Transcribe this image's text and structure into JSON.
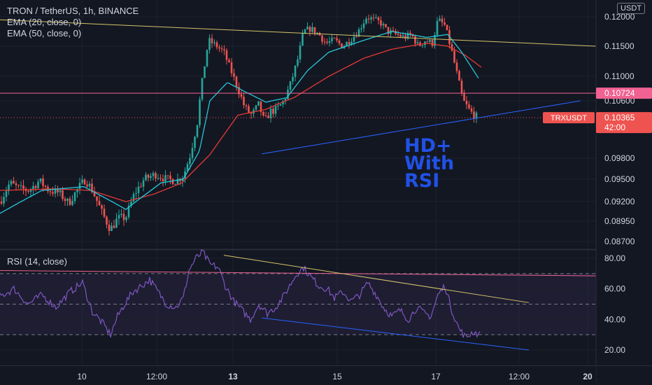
{
  "header": {
    "symbol_line": "TRON / TetherUS, 1h, BINANCE",
    "ema20_label": "EMA (20, close, 0)",
    "ema50_label": "EMA (50, close, 0)",
    "rsi_label": "RSI (14, close)",
    "currency": "USDT"
  },
  "annotation": {
    "line1": "HD+",
    "line2": "With",
    "line3": "RSI"
  },
  "colors": {
    "background": "#131722",
    "up_candle": "#26a69a",
    "down_candle": "#ef5350",
    "ema20": "#26c6da",
    "ema50": "#e53935",
    "rsi": "#7e57c2",
    "horizontal_level": "#f06292",
    "trendline_upper": "#d4c36a",
    "trendline_lower": "#2962ff",
    "annotation": "#2151e6"
  },
  "chart_data": [
    {
      "type": "candlestick",
      "title": "TRON / TetherUS, 1h, BINANCE",
      "x_ticks": [
        "10",
        "12:00",
        "13",
        "15",
        "17",
        "12:00",
        "20"
      ],
      "y_ticks": [
        "0.12000",
        "0.11500",
        "0.11000",
        "0.10600",
        "0.09800",
        "0.09500",
        "0.09200",
        "0.08950",
        "0.08700"
      ],
      "ylim": [
        0.0862,
        0.121
      ],
      "price_anchors": [
        [
          0,
          0.092
        ],
        [
          14,
          0.0945
        ],
        [
          28,
          0.0937
        ],
        [
          42,
          0.0935
        ],
        [
          56,
          0.0948
        ],
        [
          70,
          0.0935
        ],
        [
          84,
          0.0932
        ],
        [
          98,
          0.0918
        ],
        [
          112,
          0.0938
        ],
        [
          122,
          0.095
        ],
        [
          132,
          0.0935
        ],
        [
          146,
          0.0905
        ],
        [
          158,
          0.0885
        ],
        [
          168,
          0.0898
        ],
        [
          180,
          0.09
        ],
        [
          192,
          0.093
        ],
        [
          206,
          0.095
        ],
        [
          222,
          0.0957
        ],
        [
          238,
          0.095
        ],
        [
          252,
          0.0948
        ],
        [
          262,
          0.0955
        ],
        [
          272,
          0.0985
        ],
        [
          282,
          0.103
        ],
        [
          290,
          0.11
        ],
        [
          298,
          0.116
        ],
        [
          310,
          0.115
        ],
        [
          320,
          0.114
        ],
        [
          330,
          0.111
        ],
        [
          340,
          0.108
        ],
        [
          350,
          0.105
        ],
        [
          360,
          0.104
        ],
        [
          370,
          0.1055
        ],
        [
          378,
          0.103
        ],
        [
          386,
          0.1045
        ],
        [
          396,
          0.1048
        ],
        [
          406,
          0.106
        ],
        [
          416,
          0.109
        ],
        [
          426,
          0.113
        ],
        [
          434,
          0.1175
        ],
        [
          444,
          0.118
        ],
        [
          456,
          0.117
        ],
        [
          466,
          0.1155
        ],
        [
          478,
          0.116
        ],
        [
          490,
          0.115
        ],
        [
          500,
          0.116
        ],
        [
          512,
          0.1175
        ],
        [
          524,
          0.12
        ],
        [
          534,
          0.1195
        ],
        [
          544,
          0.119
        ],
        [
          554,
          0.1175
        ],
        [
          566,
          0.117
        ],
        [
          578,
          0.1165
        ],
        [
          588,
          0.117
        ],
        [
          598,
          0.115
        ],
        [
          608,
          0.116
        ],
        [
          618,
          0.1155
        ],
        [
          626,
          0.1195
        ],
        [
          636,
          0.1185
        ],
        [
          646,
          0.114
        ],
        [
          654,
          0.11
        ],
        [
          662,
          0.106
        ],
        [
          672,
          0.1045
        ],
        [
          682,
          0.1037
        ]
      ],
      "ema20_anchors": [
        [
          0,
          0.0905
        ],
        [
          60,
          0.0935
        ],
        [
          120,
          0.094
        ],
        [
          180,
          0.091
        ],
        [
          230,
          0.0945
        ],
        [
          262,
          0.095
        ],
        [
          285,
          0.099
        ],
        [
          300,
          0.106
        ],
        [
          325,
          0.109
        ],
        [
          350,
          0.1075
        ],
        [
          380,
          0.1058
        ],
        [
          410,
          0.1065
        ],
        [
          440,
          0.111
        ],
        [
          470,
          0.114
        ],
        [
          520,
          0.116
        ],
        [
          560,
          0.1175
        ],
        [
          610,
          0.1165
        ],
        [
          640,
          0.117
        ],
        [
          660,
          0.114
        ],
        [
          685,
          0.1095
        ]
      ],
      "ema50_anchors": [
        [
          0,
          0.0935
        ],
        [
          80,
          0.0937
        ],
        [
          130,
          0.0935
        ],
        [
          180,
          0.092
        ],
        [
          220,
          0.093
        ],
        [
          260,
          0.0945
        ],
        [
          300,
          0.0985
        ],
        [
          340,
          0.104
        ],
        [
          380,
          0.1048
        ],
        [
          420,
          0.1065
        ],
        [
          470,
          0.11
        ],
        [
          520,
          0.113
        ],
        [
          560,
          0.1145
        ],
        [
          610,
          0.1155
        ],
        [
          640,
          0.115
        ],
        [
          665,
          0.1135
        ],
        [
          688,
          0.1115
        ]
      ],
      "horizontal_level": 0.10724,
      "last_price_line": 0.10365,
      "price_labels": [
        {
          "value": "0.10724",
          "color": "#f06292"
        },
        {
          "symbol": "TRXUSDT",
          "value": "0.10365",
          "countdown": "42:00",
          "color": "#ef5350"
        }
      ],
      "trendline_upper": [
        [
          0,
          0.1195
        ],
        [
          852,
          0.115
        ]
      ],
      "trendline_lower": [
        [
          374,
          0.0986
        ],
        [
          830,
          0.106
        ]
      ]
    },
    {
      "type": "line",
      "title": "RSI (14, close)",
      "y_ticks": [
        "80.00",
        "60.00",
        "40.00",
        "20.00"
      ],
      "ylim": [
        16,
        82
      ],
      "band_levels": [
        70,
        50,
        30
      ],
      "rsi_anchors": [
        [
          0,
          55
        ],
        [
          20,
          60
        ],
        [
          40,
          50
        ],
        [
          60,
          56
        ],
        [
          80,
          48
        ],
        [
          100,
          58
        ],
        [
          118,
          64
        ],
        [
          132,
          45
        ],
        [
          146,
          38
        ],
        [
          158,
          30
        ],
        [
          168,
          42
        ],
        [
          178,
          50
        ],
        [
          190,
          58
        ],
        [
          202,
          62
        ],
        [
          214,
          66
        ],
        [
          226,
          58
        ],
        [
          238,
          50
        ],
        [
          252,
          48
        ],
        [
          262,
          54
        ],
        [
          270,
          72
        ],
        [
          280,
          80
        ],
        [
          290,
          84
        ],
        [
          300,
          76
        ],
        [
          312,
          74
        ],
        [
          322,
          62
        ],
        [
          334,
          52
        ],
        [
          346,
          46
        ],
        [
          358,
          40
        ],
        [
          370,
          50
        ],
        [
          382,
          44
        ],
        [
          394,
          48
        ],
        [
          404,
          54
        ],
        [
          414,
          62
        ],
        [
          424,
          70
        ],
        [
          434,
          74
        ],
        [
          444,
          68
        ],
        [
          456,
          62
        ],
        [
          468,
          60
        ],
        [
          478,
          54
        ],
        [
          490,
          58
        ],
        [
          502,
          52
        ],
        [
          514,
          56
        ],
        [
          526,
          64
        ],
        [
          538,
          56
        ],
        [
          548,
          48
        ],
        [
          560,
          42
        ],
        [
          572,
          46
        ],
        [
          584,
          40
        ],
        [
          596,
          48
        ],
        [
          606,
          44
        ],
        [
          616,
          42
        ],
        [
          626,
          56
        ],
        [
          636,
          62
        ],
        [
          646,
          46
        ],
        [
          656,
          34
        ],
        [
          666,
          28
        ],
        [
          676,
          32
        ],
        [
          686,
          30
        ]
      ],
      "trendline_upper": [
        [
          320,
          82
        ],
        [
          756,
          51
        ]
      ],
      "trendline_lower": [
        [
          374,
          41
        ],
        [
          756,
          20
        ]
      ],
      "level_line": [
        [
          0,
          72
        ],
        [
          852,
          68.5
        ]
      ]
    }
  ],
  "time_axis": {
    "labels": [
      "10",
      "12:00",
      "13",
      "15",
      "17",
      "12:00",
      "20"
    ]
  }
}
